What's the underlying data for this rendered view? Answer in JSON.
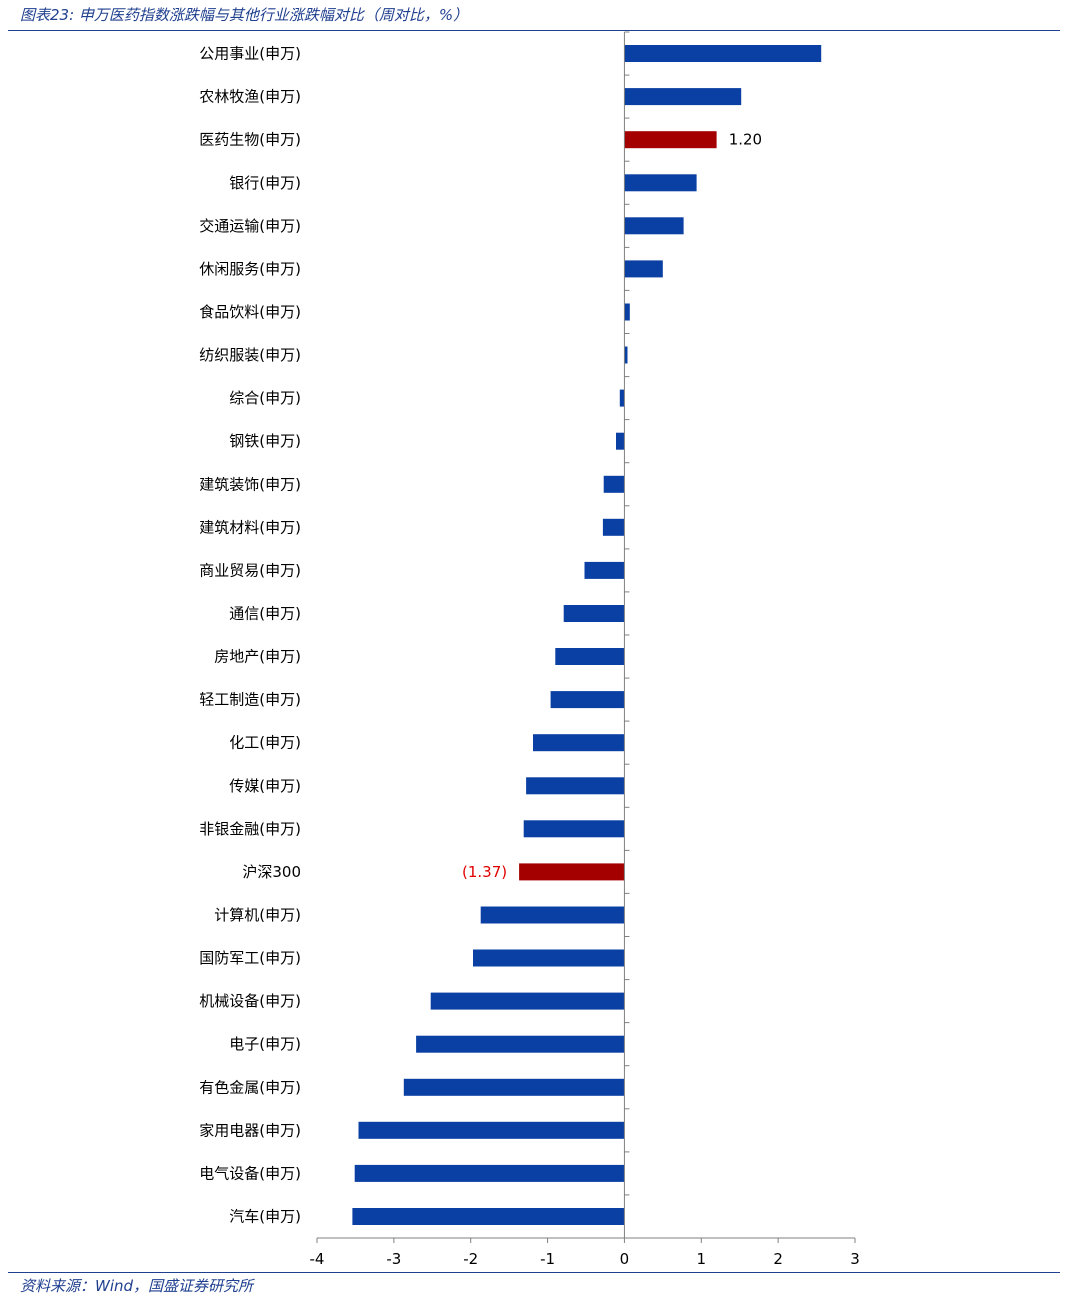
{
  "header": {
    "title": "图表23:  申万医药指数涨跌幅与其他行业涨跌幅对比（周对比，%）"
  },
  "footer": {
    "source": "资料来源：Wind，国盛证券研究所"
  },
  "colors": {
    "default_bar": "#0a3fa3",
    "highlight_bar": "#a40000",
    "highlight_label_positive": "#000000",
    "highlight_label_negative": "#e00000",
    "header_text": "#1f3f8f"
  },
  "chart_data": {
    "type": "bar",
    "orientation": "horizontal",
    "title": "",
    "xlabel": "",
    "ylabel": "",
    "xlim": [
      -4,
      3
    ],
    "xticks": [
      -4,
      -3,
      -2,
      -1,
      0,
      1,
      2,
      3
    ],
    "grid": false,
    "categories": [
      "公用事业(申万)",
      "农林牧渔(申万)",
      "医药生物(申万)",
      "银行(申万)",
      "交通运输(申万)",
      "休闲服务(申万)",
      "食品饮料(申万)",
      "纺织服装(申万)",
      "综合(申万)",
      "钢铁(申万)",
      "建筑装饰(申万)",
      "建筑材料(申万)",
      "商业贸易(申万)",
      "通信(申万)",
      "房地产(申万)",
      "轻工制造(申万)",
      "化工(申万)",
      "传媒(申万)",
      "非银金融(申万)",
      "沪深300",
      "计算机(申万)",
      "国防军工(申万)",
      "机械设备(申万)",
      "电子(申万)",
      "有色金属(申万)",
      "家用电器(申万)",
      "电气设备(申万)",
      "汽车(申万)"
    ],
    "values": [
      2.56,
      1.52,
      1.2,
      0.94,
      0.77,
      0.5,
      0.07,
      0.04,
      -0.06,
      -0.11,
      -0.27,
      -0.28,
      -0.52,
      -0.79,
      -0.9,
      -0.96,
      -1.19,
      -1.28,
      -1.31,
      -1.37,
      -1.87,
      -1.97,
      -2.52,
      -2.71,
      -2.87,
      -3.46,
      -3.51,
      -3.54
    ],
    "highlighted": [
      "医药生物(申万)",
      "沪深300"
    ],
    "data_labels": {
      "医药生物(申万)": "1.20",
      "沪深300": "(1.37)"
    }
  }
}
